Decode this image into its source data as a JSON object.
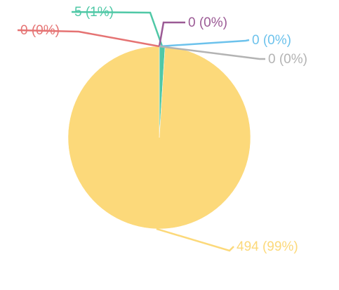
{
  "chart_data": {
    "type": "pie",
    "slices": [
      {
        "value": 494,
        "label": "494 (99%)",
        "color": "#fcd97a"
      },
      {
        "value": 0,
        "label": "0 (0%)",
        "color": "#e57373"
      },
      {
        "value": 5,
        "label": "5 (1%)",
        "color": "#4fc8a6"
      },
      {
        "value": 0,
        "label": "0 (0%)",
        "color": "#9b5a95"
      },
      {
        "value": 0,
        "label": "0 (0%)",
        "color": "#6cc2ec"
      },
      {
        "value": 0,
        "label": "0 (0%)",
        "color": "#b3b3b3"
      }
    ]
  }
}
